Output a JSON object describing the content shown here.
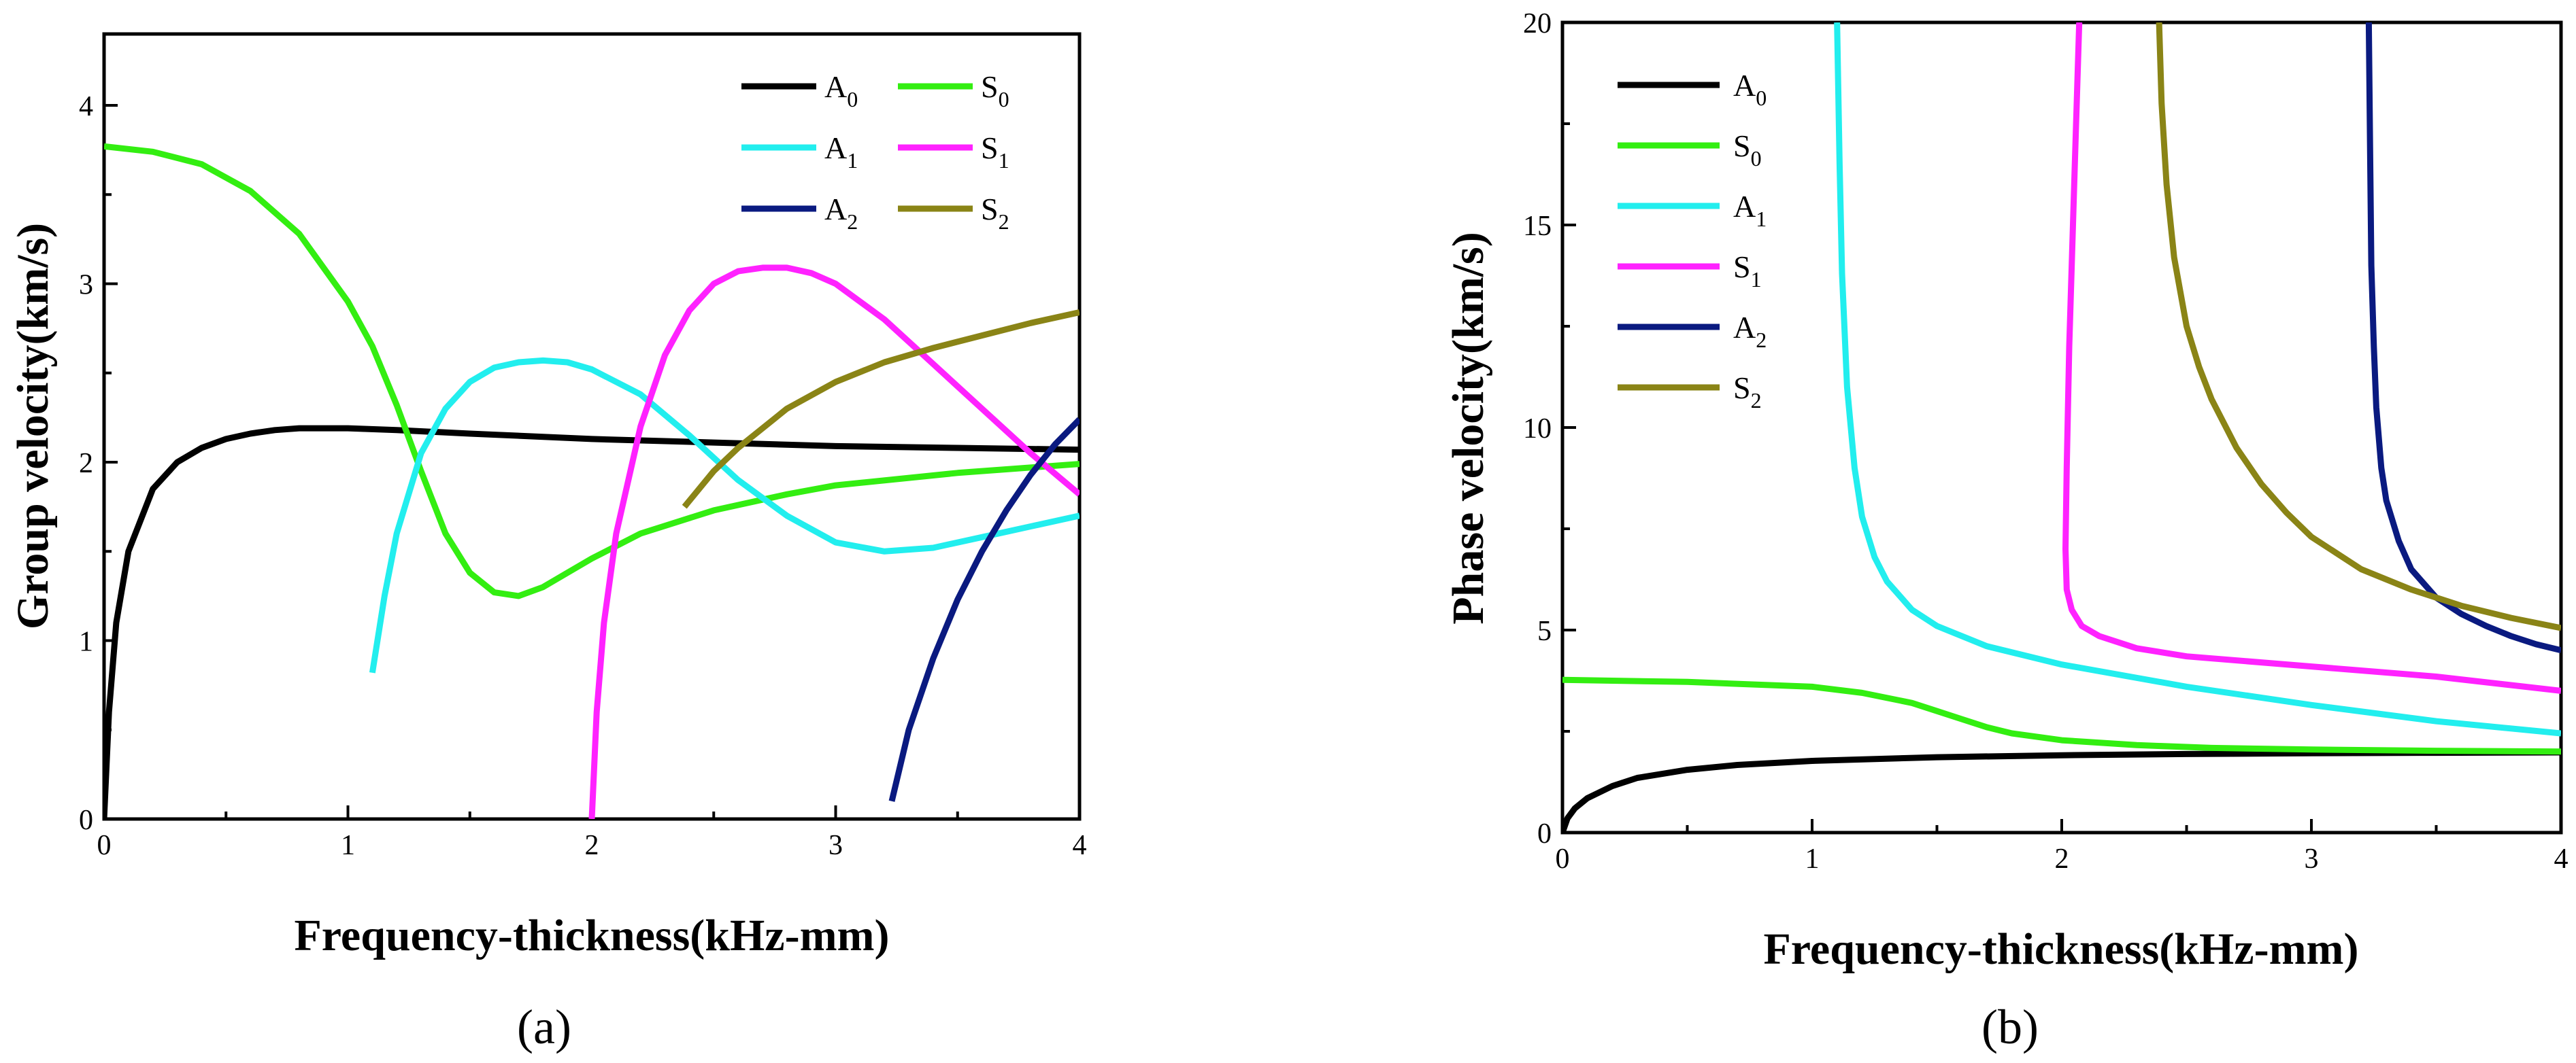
{
  "chart_data": [
    {
      "panel_label": "(a)",
      "type": "line",
      "xlabel": "Frequency-thickness(kHz-mm)",
      "ylabel": "Group velocity(km/s)",
      "xlim": [
        0,
        4
      ],
      "ylim": [
        0,
        4.4
      ],
      "xticks": [
        "0",
        "1",
        "2",
        "3",
        "4"
      ],
      "yticks": [
        "0",
        "1",
        "2",
        "3",
        "4"
      ],
      "legend": {
        "placement": "top-right",
        "columns": 2,
        "order": [
          "A0",
          "S0",
          "A1",
          "S1",
          "A2",
          "S2"
        ]
      },
      "series": [
        {
          "key": "A0",
          "name": "A",
          "sub": "0",
          "color": "#000000",
          "x": [
            0,
            0.02,
            0.05,
            0.1,
            0.2,
            0.3,
            0.4,
            0.5,
            0.6,
            0.7,
            0.8,
            0.9,
            1.0,
            1.2,
            1.5,
            2.0,
            2.5,
            3.0,
            3.5,
            4.0
          ],
          "y": [
            0,
            0.6,
            1.1,
            1.5,
            1.85,
            2.0,
            2.08,
            2.13,
            2.16,
            2.18,
            2.19,
            2.19,
            2.19,
            2.18,
            2.16,
            2.13,
            2.11,
            2.09,
            2.08,
            2.07
          ]
        },
        {
          "key": "S0",
          "name": "S",
          "sub": "0",
          "color": "#33ee11",
          "x": [
            0,
            0.2,
            0.4,
            0.6,
            0.8,
            1.0,
            1.1,
            1.2,
            1.3,
            1.4,
            1.5,
            1.6,
            1.7,
            1.8,
            1.9,
            2.0,
            2.2,
            2.5,
            2.8,
            3.0,
            3.5,
            4.0
          ],
          "y": [
            3.77,
            3.74,
            3.67,
            3.52,
            3.28,
            2.9,
            2.65,
            2.32,
            1.95,
            1.6,
            1.38,
            1.27,
            1.25,
            1.3,
            1.38,
            1.46,
            1.6,
            1.73,
            1.82,
            1.87,
            1.94,
            1.99
          ]
        },
        {
          "key": "A1",
          "name": "A",
          "sub": "1",
          "color": "#22eeee",
          "x": [
            1.1,
            1.15,
            1.2,
            1.3,
            1.4,
            1.5,
            1.6,
            1.7,
            1.8,
            1.9,
            2.0,
            2.2,
            2.4,
            2.6,
            2.8,
            3.0,
            3.2,
            3.4,
            3.6,
            3.8,
            4.0
          ],
          "y": [
            0.82,
            1.25,
            1.6,
            2.05,
            2.3,
            2.45,
            2.53,
            2.56,
            2.57,
            2.56,
            2.52,
            2.38,
            2.15,
            1.9,
            1.7,
            1.55,
            1.5,
            1.52,
            1.58,
            1.64,
            1.7
          ]
        },
        {
          "key": "S1",
          "name": "S",
          "sub": "1",
          "color": "#ff22ff",
          "x": [
            2.0,
            2.02,
            2.05,
            2.1,
            2.2,
            2.3,
            2.4,
            2.5,
            2.6,
            2.7,
            2.8,
            2.9,
            3.0,
            3.2,
            3.4,
            3.6,
            3.8,
            4.0
          ],
          "y": [
            0,
            0.6,
            1.1,
            1.6,
            2.2,
            2.6,
            2.85,
            3.0,
            3.07,
            3.09,
            3.09,
            3.06,
            3.0,
            2.8,
            2.55,
            2.3,
            2.05,
            1.82
          ]
        },
        {
          "key": "A2",
          "name": "A",
          "sub": "2",
          "color": "#0a1a80",
          "x": [
            3.23,
            3.3,
            3.4,
            3.5,
            3.6,
            3.7,
            3.8,
            3.9,
            4.0
          ],
          "y": [
            0.1,
            0.5,
            0.9,
            1.23,
            1.5,
            1.73,
            1.93,
            2.1,
            2.24
          ]
        },
        {
          "key": "S2",
          "name": "S",
          "sub": "2",
          "color": "#8a8416",
          "x": [
            2.38,
            2.5,
            2.6,
            2.8,
            3.0,
            3.2,
            3.4,
            3.6,
            3.8,
            4.0
          ],
          "y": [
            1.75,
            1.95,
            2.08,
            2.3,
            2.45,
            2.56,
            2.64,
            2.71,
            2.78,
            2.84
          ]
        }
      ]
    },
    {
      "panel_label": "(b)",
      "type": "line",
      "xlabel": "Frequency-thickness(kHz-mm)",
      "ylabel": "Phase velocity(km/s)",
      "xlim": [
        0,
        4
      ],
      "ylim": [
        0,
        20
      ],
      "xticks": [
        "0",
        "1",
        "2",
        "3",
        "4"
      ],
      "yticks": [
        "0",
        "5",
        "10",
        "15",
        "20"
      ],
      "legend": {
        "placement": "top-left",
        "columns": 1,
        "order": [
          "A0",
          "S0",
          "A1",
          "S1",
          "A2",
          "S2"
        ]
      },
      "series": [
        {
          "key": "A0",
          "name": "A",
          "sub": "0",
          "color": "#000000",
          "x": [
            0,
            0.02,
            0.05,
            0.1,
            0.2,
            0.3,
            0.5,
            0.7,
            1.0,
            1.5,
            2.0,
            2.5,
            3.0,
            3.5,
            4.0
          ],
          "y": [
            0,
            0.35,
            0.6,
            0.85,
            1.15,
            1.35,
            1.55,
            1.67,
            1.77,
            1.86,
            1.91,
            1.94,
            1.96,
            1.97,
            1.98
          ]
        },
        {
          "key": "S0",
          "name": "S",
          "sub": "0",
          "color": "#33ee11",
          "x": [
            0,
            0.5,
            1.0,
            1.2,
            1.4,
            1.5,
            1.6,
            1.7,
            1.8,
            2.0,
            2.3,
            2.6,
            3.0,
            3.5,
            4.0
          ],
          "y": [
            3.77,
            3.72,
            3.6,
            3.45,
            3.2,
            3.0,
            2.8,
            2.6,
            2.45,
            2.28,
            2.16,
            2.09,
            2.05,
            2.02,
            2.0
          ]
        },
        {
          "key": "A1",
          "name": "A",
          "sub": "1",
          "color": "#22eeee",
          "x": [
            1.1,
            1.11,
            1.12,
            1.14,
            1.17,
            1.2,
            1.25,
            1.3,
            1.4,
            1.5,
            1.7,
            2.0,
            2.5,
            3.0,
            3.5,
            4.0
          ],
          "y": [
            20,
            16.5,
            13.8,
            11.0,
            9.0,
            7.8,
            6.8,
            6.2,
            5.5,
            5.1,
            4.6,
            4.15,
            3.6,
            3.15,
            2.75,
            2.45
          ]
        },
        {
          "key": "S1",
          "name": "S",
          "sub": "1",
          "color": "#ff22ff",
          "x": [
            2.07,
            2.05,
            2.03,
            2.02,
            2.015,
            2.02,
            2.04,
            2.08,
            2.15,
            2.3,
            2.5,
            3.0,
            3.5,
            4.0
          ],
          "y": [
            20,
            16.0,
            12.0,
            9.0,
            7.0,
            6.0,
            5.5,
            5.1,
            4.85,
            4.55,
            4.35,
            4.1,
            3.85,
            3.5
          ]
        },
        {
          "key": "A2",
          "name": "A",
          "sub": "2",
          "color": "#0a1a80",
          "x": [
            3.23,
            3.235,
            3.24,
            3.25,
            3.26,
            3.28,
            3.3,
            3.35,
            3.4,
            3.5,
            3.6,
            3.7,
            3.8,
            3.9,
            4.0
          ],
          "y": [
            20,
            17.0,
            14.0,
            12.0,
            10.5,
            9.0,
            8.2,
            7.2,
            6.5,
            5.8,
            5.4,
            5.1,
            4.85,
            4.65,
            4.5
          ]
        },
        {
          "key": "S2",
          "name": "S",
          "sub": "2",
          "color": "#8a8416",
          "x": [
            2.39,
            2.4,
            2.42,
            2.45,
            2.5,
            2.55,
            2.6,
            2.7,
            2.8,
            2.9,
            3.0,
            3.2,
            3.4,
            3.6,
            3.8,
            4.0
          ],
          "y": [
            20,
            18.0,
            16.0,
            14.2,
            12.5,
            11.5,
            10.7,
            9.5,
            8.6,
            7.9,
            7.3,
            6.5,
            6.0,
            5.6,
            5.3,
            5.05
          ]
        }
      ]
    }
  ]
}
